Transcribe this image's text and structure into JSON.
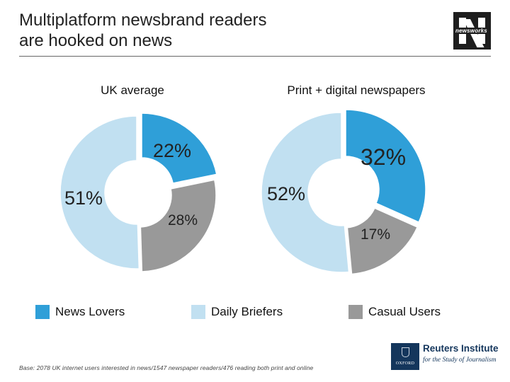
{
  "title_line1": "Multiplatform newsbrand readers",
  "title_line2": "are hooked on news",
  "logo_text": "newsworks",
  "colors": {
    "news_lovers": "#2f9fd8",
    "daily_briefers": "#c1e0f1",
    "casual_users": "#999999"
  },
  "legend": [
    {
      "label": "News Lovers",
      "color": "#2f9fd8"
    },
    {
      "label": "Daily Briefers",
      "color": "#c1e0f1"
    },
    {
      "label": "Casual Users",
      "color": "#999999"
    }
  ],
  "chart_data": [
    {
      "type": "pie",
      "style": "donut",
      "title": "UK average",
      "slices": [
        {
          "label": "News Lovers",
          "value": 22,
          "value_label": "22%"
        },
        {
          "label": "Casual Users",
          "value": 28,
          "value_label": "28%"
        },
        {
          "label": "Daily Briefers",
          "value": 51,
          "value_label": "51%"
        }
      ]
    },
    {
      "type": "pie",
      "style": "donut",
      "title": "Print + digital newspapers",
      "slices": [
        {
          "label": "News Lovers",
          "value": 32,
          "value_label": "32%"
        },
        {
          "label": "Casual Users",
          "value": 17,
          "value_label": "17%"
        },
        {
          "label": "Daily Briefers",
          "value": 52,
          "value_label": "52%"
        }
      ]
    }
  ],
  "footnote": "Base: 2078 UK internet users interested in news/1547 newspaper readers/476 reading both print and online",
  "partner": {
    "oxford_label": "OXFORD",
    "name": "Reuters Institute",
    "subtitle": "for the Study of Journalism"
  }
}
